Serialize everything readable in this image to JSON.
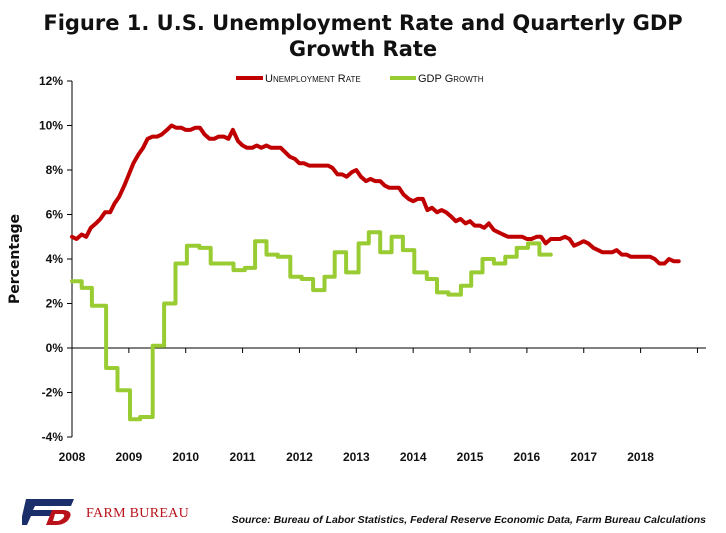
{
  "header": {
    "title_line1": "Figure 1. U.S. Unemployment Rate and Quarterly GDP",
    "title_line2": "Growth Rate"
  },
  "footer": {
    "brand": "FARM BUREAU",
    "source": "Source: Bureau of Labor Statistics, Federal Reserve Economic Data, Farm Bureau Calculations"
  },
  "chart_data": {
    "type": "line",
    "title": "Figure 1. U.S. Unemployment Rate and Quarterly GDP Growth Rate",
    "xlabel": "",
    "ylabel": "Percentage",
    "xlim": [
      2008,
      2019.15
    ],
    "ylim": [
      -4,
      12
    ],
    "ytick_values": [
      -4,
      -2,
      0,
      2,
      4,
      6,
      8,
      10,
      12
    ],
    "ytick_labels": [
      "-4%",
      "-2%",
      "0%",
      "2%",
      "4%",
      "6%",
      "8%",
      "10%",
      "12%"
    ],
    "xtick_values": [
      2008,
      2009,
      2010,
      2011,
      2012,
      2013,
      2014,
      2015,
      2016,
      2017,
      2018
    ],
    "xtick_labels": [
      "2008",
      "2009",
      "2010",
      "2011",
      "2012",
      "2013",
      "2014",
      "2015",
      "2016",
      "2017",
      "2018"
    ],
    "legend_position": "top-center",
    "grid": false,
    "series": [
      {
        "name": "Unemployment Rate",
        "color": "#c00000",
        "points": [
          [
            2008.0,
            5.0
          ],
          [
            2008.08,
            4.9
          ],
          [
            2008.17,
            5.1
          ],
          [
            2008.25,
            5.0
          ],
          [
            2008.33,
            5.4
          ],
          [
            2008.42,
            5.6
          ],
          [
            2008.5,
            5.8
          ],
          [
            2008.58,
            6.1
          ],
          [
            2008.67,
            6.1
          ],
          [
            2008.75,
            6.5
          ],
          [
            2008.83,
            6.8
          ],
          [
            2008.92,
            7.3
          ],
          [
            2009.0,
            7.8
          ],
          [
            2009.08,
            8.3
          ],
          [
            2009.17,
            8.7
          ],
          [
            2009.25,
            9.0
          ],
          [
            2009.33,
            9.4
          ],
          [
            2009.42,
            9.5
          ],
          [
            2009.5,
            9.5
          ],
          [
            2009.58,
            9.6
          ],
          [
            2009.67,
            9.8
          ],
          [
            2009.75,
            10.0
          ],
          [
            2009.83,
            9.9
          ],
          [
            2009.92,
            9.9
          ],
          [
            2010.0,
            9.8
          ],
          [
            2010.08,
            9.8
          ],
          [
            2010.17,
            9.9
          ],
          [
            2010.25,
            9.9
          ],
          [
            2010.33,
            9.6
          ],
          [
            2010.42,
            9.4
          ],
          [
            2010.5,
            9.4
          ],
          [
            2010.58,
            9.5
          ],
          [
            2010.67,
            9.5
          ],
          [
            2010.75,
            9.4
          ],
          [
            2010.83,
            9.8
          ],
          [
            2010.92,
            9.3
          ],
          [
            2011.0,
            9.1
          ],
          [
            2011.08,
            9.0
          ],
          [
            2011.17,
            9.0
          ],
          [
            2011.25,
            9.1
          ],
          [
            2011.33,
            9.0
          ],
          [
            2011.42,
            9.1
          ],
          [
            2011.5,
            9.0
          ],
          [
            2011.58,
            9.0
          ],
          [
            2011.67,
            9.0
          ],
          [
            2011.75,
            8.8
          ],
          [
            2011.83,
            8.6
          ],
          [
            2011.92,
            8.5
          ],
          [
            2012.0,
            8.3
          ],
          [
            2012.08,
            8.3
          ],
          [
            2012.17,
            8.2
          ],
          [
            2012.25,
            8.2
          ],
          [
            2012.33,
            8.2
          ],
          [
            2012.42,
            8.2
          ],
          [
            2012.5,
            8.2
          ],
          [
            2012.58,
            8.1
          ],
          [
            2012.67,
            7.8
          ],
          [
            2012.75,
            7.8
          ],
          [
            2012.83,
            7.7
          ],
          [
            2012.92,
            7.9
          ],
          [
            2013.0,
            8.0
          ],
          [
            2013.08,
            7.7
          ],
          [
            2013.17,
            7.5
          ],
          [
            2013.25,
            7.6
          ],
          [
            2013.33,
            7.5
          ],
          [
            2013.42,
            7.5
          ],
          [
            2013.5,
            7.3
          ],
          [
            2013.58,
            7.2
          ],
          [
            2013.67,
            7.2
          ],
          [
            2013.75,
            7.2
          ],
          [
            2013.83,
            6.9
          ],
          [
            2013.92,
            6.7
          ],
          [
            2014.0,
            6.6
          ],
          [
            2014.08,
            6.7
          ],
          [
            2014.17,
            6.7
          ],
          [
            2014.25,
            6.2
          ],
          [
            2014.33,
            6.3
          ],
          [
            2014.42,
            6.1
          ],
          [
            2014.5,
            6.2
          ],
          [
            2014.58,
            6.1
          ],
          [
            2014.67,
            5.9
          ],
          [
            2014.75,
            5.7
          ],
          [
            2014.83,
            5.8
          ],
          [
            2014.92,
            5.6
          ],
          [
            2015.0,
            5.7
          ],
          [
            2015.08,
            5.5
          ],
          [
            2015.17,
            5.5
          ],
          [
            2015.25,
            5.4
          ],
          [
            2015.33,
            5.6
          ],
          [
            2015.42,
            5.3
          ],
          [
            2015.5,
            5.2
          ],
          [
            2015.58,
            5.1
          ],
          [
            2015.67,
            5.0
          ],
          [
            2015.75,
            5.0
          ],
          [
            2015.83,
            5.0
          ],
          [
            2015.92,
            5.0
          ],
          [
            2016.0,
            4.9
          ],
          [
            2016.08,
            4.9
          ],
          [
            2016.17,
            5.0
          ],
          [
            2016.25,
            5.0
          ],
          [
            2016.33,
            4.7
          ],
          [
            2016.42,
            4.9
          ],
          [
            2016.5,
            4.9
          ],
          [
            2016.58,
            4.9
          ],
          [
            2016.67,
            5.0
          ],
          [
            2016.75,
            4.9
          ],
          [
            2016.83,
            4.6
          ],
          [
            2016.92,
            4.7
          ],
          [
            2017.0,
            4.8
          ],
          [
            2017.08,
            4.7
          ],
          [
            2017.17,
            4.5
          ],
          [
            2017.25,
            4.4
          ],
          [
            2017.33,
            4.3
          ],
          [
            2017.42,
            4.3
          ],
          [
            2017.5,
            4.3
          ],
          [
            2017.58,
            4.4
          ],
          [
            2017.67,
            4.2
          ],
          [
            2017.75,
            4.2
          ],
          [
            2017.83,
            4.1
          ],
          [
            2017.92,
            4.1
          ],
          [
            2018.0,
            4.1
          ],
          [
            2018.08,
            4.1
          ],
          [
            2018.17,
            4.1
          ],
          [
            2018.25,
            4.0
          ],
          [
            2018.33,
            3.8
          ],
          [
            2018.42,
            3.8
          ],
          [
            2018.5,
            4.0
          ],
          [
            2018.58,
            3.9
          ],
          [
            2018.67,
            3.9
          ]
        ]
      },
      {
        "name": "GDP Growth",
        "color": "#99cc33",
        "points": [
          [
            2008.0,
            3.0
          ],
          [
            2008.17,
            3.0
          ],
          [
            2008.17,
            2.7
          ],
          [
            2008.35,
            2.7
          ],
          [
            2008.35,
            1.9
          ],
          [
            2008.6,
            1.9
          ],
          [
            2008.6,
            -0.9
          ],
          [
            2008.8,
            -0.9
          ],
          [
            2008.8,
            -1.9
          ],
          [
            2009.02,
            -1.9
          ],
          [
            2009.02,
            -3.2
          ],
          [
            2009.2,
            -3.2
          ],
          [
            2009.2,
            -3.1
          ],
          [
            2009.42,
            -3.1
          ],
          [
            2009.42,
            0.1
          ],
          [
            2009.62,
            0.1
          ],
          [
            2009.62,
            2.0
          ],
          [
            2009.82,
            2.0
          ],
          [
            2009.82,
            3.8
          ],
          [
            2010.02,
            3.8
          ],
          [
            2010.02,
            4.6
          ],
          [
            2010.24,
            4.6
          ],
          [
            2010.24,
            4.5
          ],
          [
            2010.44,
            4.5
          ],
          [
            2010.44,
            3.8
          ],
          [
            2010.62,
            3.8
          ],
          [
            2010.62,
            3.8
          ],
          [
            2010.84,
            3.8
          ],
          [
            2010.84,
            3.5
          ],
          [
            2011.04,
            3.5
          ],
          [
            2011.04,
            3.6
          ],
          [
            2011.22,
            3.6
          ],
          [
            2011.22,
            4.8
          ],
          [
            2011.42,
            4.8
          ],
          [
            2011.42,
            4.2
          ],
          [
            2011.62,
            4.2
          ],
          [
            2011.62,
            4.1
          ],
          [
            2011.84,
            4.1
          ],
          [
            2011.84,
            3.2
          ],
          [
            2012.04,
            3.2
          ],
          [
            2012.04,
            3.1
          ],
          [
            2012.24,
            3.1
          ],
          [
            2012.24,
            2.6
          ],
          [
            2012.44,
            2.6
          ],
          [
            2012.44,
            3.2
          ],
          [
            2012.62,
            3.2
          ],
          [
            2012.62,
            4.3
          ],
          [
            2012.82,
            4.3
          ],
          [
            2012.82,
            3.4
          ],
          [
            2013.04,
            3.4
          ],
          [
            2013.04,
            4.7
          ],
          [
            2013.22,
            4.7
          ],
          [
            2013.22,
            5.2
          ],
          [
            2013.42,
            5.2
          ],
          [
            2013.42,
            4.3
          ],
          [
            2013.62,
            4.3
          ],
          [
            2013.62,
            5.0
          ],
          [
            2013.82,
            5.0
          ],
          [
            2013.82,
            4.4
          ],
          [
            2014.02,
            4.4
          ],
          [
            2014.02,
            3.4
          ],
          [
            2014.24,
            3.4
          ],
          [
            2014.24,
            3.1
          ],
          [
            2014.42,
            3.1
          ],
          [
            2014.42,
            2.5
          ],
          [
            2014.62,
            2.5
          ],
          [
            2014.62,
            2.4
          ],
          [
            2014.84,
            2.4
          ],
          [
            2014.84,
            2.8
          ],
          [
            2015.02,
            2.8
          ],
          [
            2015.02,
            3.4
          ],
          [
            2015.22,
            3.4
          ],
          [
            2015.22,
            4.0
          ],
          [
            2015.42,
            4.0
          ],
          [
            2015.42,
            3.8
          ],
          [
            2015.62,
            3.8
          ],
          [
            2015.62,
            4.1
          ],
          [
            2015.82,
            4.1
          ],
          [
            2015.82,
            4.5
          ],
          [
            2016.02,
            4.5
          ],
          [
            2016.02,
            4.7
          ],
          [
            2016.22,
            4.7
          ],
          [
            2016.22,
            4.2
          ],
          [
            2016.42,
            4.2
          ]
        ]
      }
    ]
  }
}
